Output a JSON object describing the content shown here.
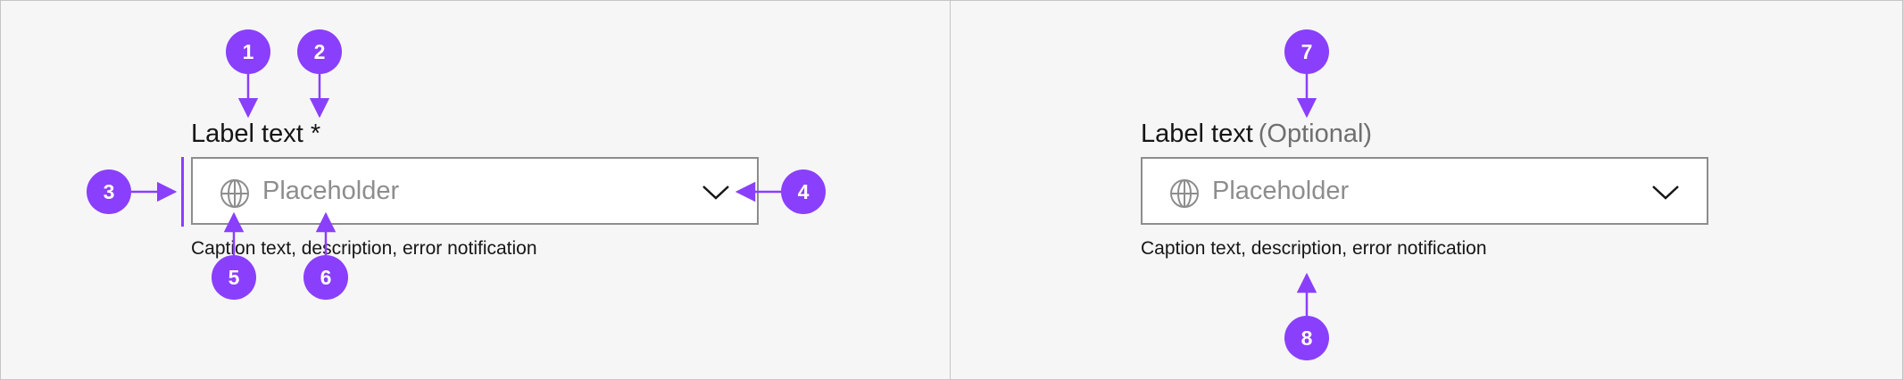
{
  "variant_required": {
    "label": "Label text *",
    "placeholder": "Placeholder",
    "caption": "Caption text, description, error notification",
    "icon": "globe-icon",
    "dropdown_icon": "chevron-down-icon"
  },
  "variant_optional": {
    "label": "Label text",
    "optional_tag": "(Optional)",
    "placeholder": "Placeholder",
    "caption": "Caption text, description, error notification",
    "icon": "globe-icon",
    "dropdown_icon": "chevron-down-icon"
  },
  "markers": [
    "1",
    "2",
    "3",
    "4",
    "5",
    "6",
    "7",
    "8"
  ],
  "colors": {
    "accent": "#8a3ffc",
    "background": "#f6f6f6",
    "field_border": "#8d8d8d",
    "placeholder": "#8d8d8d",
    "text": "#161616",
    "optional_text": "#6f6f6f"
  }
}
